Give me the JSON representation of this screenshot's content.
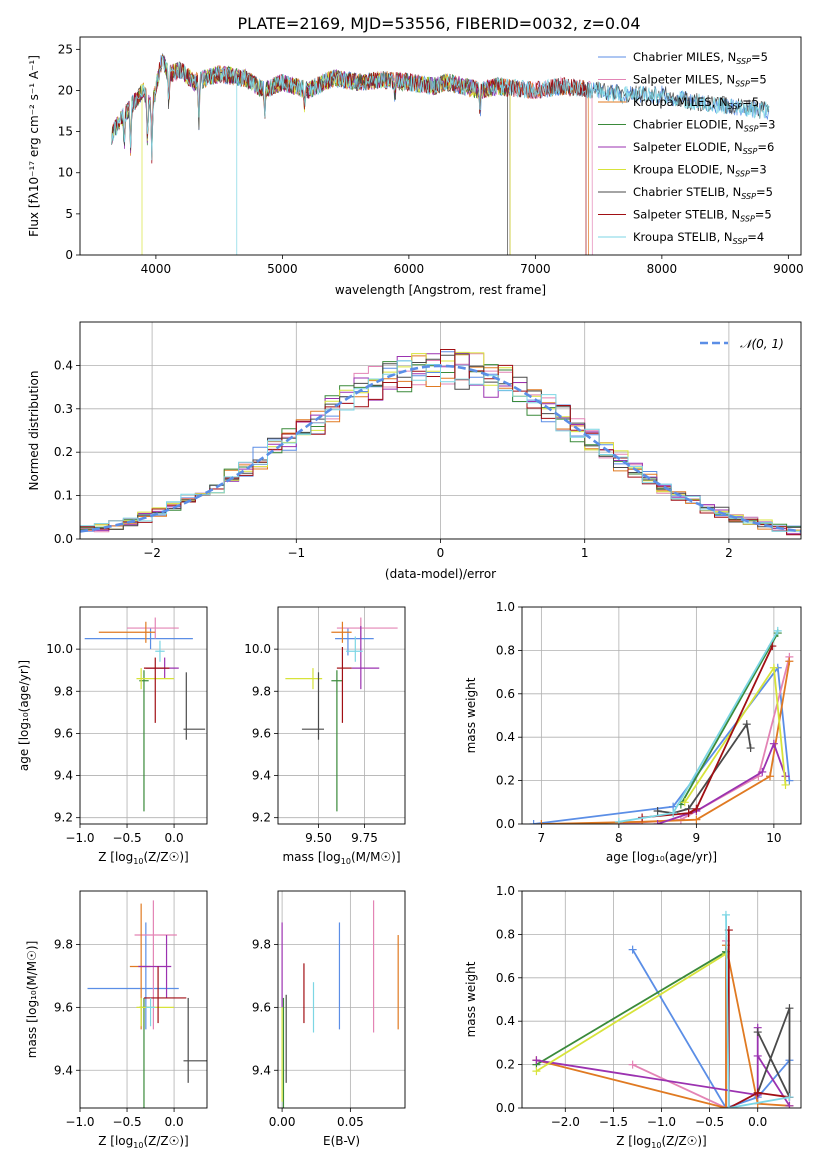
{
  "figure": {
    "title": "PLATE=2169, MJD=53556, FIBERID=0032, z=0.04"
  },
  "colors": [
    "#5b8ee6",
    "#e384b5",
    "#e07a22",
    "#3a8a3a",
    "#9b32b0",
    "#d7e33a",
    "#4a4a4a",
    "#a10f14",
    "#7cd6e4"
  ],
  "chart_data": [
    {
      "id": "spectrum",
      "type": "line",
      "xlabel": "wavelength [Angstrom, rest frame]",
      "ylabel": "Flux [fλ10⁻¹⁷ erg cm⁻² s⁻¹ A⁻¹]",
      "xlim": [
        3400,
        9100
      ],
      "ylim": [
        0,
        26.5
      ],
      "xticks": [
        4000,
        5000,
        6000,
        7000,
        8000,
        9000
      ],
      "yticks": [
        0,
        5,
        10,
        15,
        20,
        25
      ],
      "legend_loc": "upper-right",
      "series": [
        {
          "name": "Chabrier MILES, N_SSP=5",
          "label_main": "Chabrier MILES, N",
          "label_sub": "SSP",
          "label_tail": "=5",
          "x_range": [
            3650,
            8850
          ],
          "gaps": []
        },
        {
          "name": "Salpeter MILES, N_SSP=5",
          "label_main": "Salpeter MILES, N",
          "label_sub": "SSP",
          "label_tail": "=5",
          "x_range": [
            3650,
            7450
          ],
          "gaps": []
        },
        {
          "name": "Kroupa MILES, N_SSP=5",
          "label_main": "Kroupa MILES, N",
          "label_sub": "SSP",
          "label_tail": "=5",
          "x_range": [
            3650,
            7420
          ],
          "gaps": []
        },
        {
          "name": "Chabrier ELODIE, N_SSP=3",
          "label_main": "Chabrier ELODIE, N",
          "label_sub": "SSP",
          "label_tail": "=3",
          "x_range": [
            3650,
            6800
          ],
          "gaps": []
        },
        {
          "name": "Salpeter ELODIE, N_SSP=6",
          "label_main": "Salpeter ELODIE, N",
          "label_sub": "SSP",
          "label_tail": "=6",
          "x_range": [
            3650,
            6800
          ],
          "gaps": []
        },
        {
          "name": "Kroupa ELODIE, N_SSP=3",
          "label_main": "Kroupa ELODIE, N",
          "label_sub": "SSP",
          "label_tail": "=3",
          "x_range": [
            3650,
            6800
          ],
          "gaps": [
            3890
          ]
        },
        {
          "name": "Chabrier STELIB, N_SSP=5",
          "label_main": "Chabrier STELIB, N",
          "label_sub": "SSP",
          "label_tail": "=5",
          "x_range": [
            3650,
            8850
          ],
          "gaps": [
            6780
          ]
        },
        {
          "name": "Salpeter STELIB, N_SSP=5",
          "label_main": "Salpeter STELIB, N",
          "label_sub": "SSP",
          "label_tail": "=5",
          "x_range": [
            3650,
            7400
          ],
          "gaps": []
        },
        {
          "name": "Kroupa STELIB, N_SSP=4",
          "label_main": "Kroupa STELIB, N",
          "label_sub": "SSP",
          "label_tail": "=4",
          "x_range": [
            3650,
            8850
          ],
          "gaps": [
            4640
          ]
        }
      ],
      "profile": {
        "x": [
          3650,
          3700,
          3800,
          3900,
          3970,
          4050,
          4100,
          4200,
          4300,
          4400,
          4500,
          4700,
          4860,
          5000,
          5200,
          5400,
          5600,
          5800,
          6000,
          6200,
          6300,
          6563,
          6700,
          7000,
          7200,
          7500,
          7700,
          8000,
          8300,
          8600,
          8850
        ],
        "y": [
          14.5,
          16,
          18,
          20,
          18,
          24,
          22,
          22.5,
          21,
          21.5,
          22,
          21.5,
          20,
          21,
          20,
          21.5,
          21,
          21.3,
          21,
          20.5,
          21,
          20,
          20.5,
          20,
          20.5,
          20,
          19.5,
          19.5,
          18.5,
          18,
          17.5
        ]
      }
    },
    {
      "id": "residuals",
      "type": "histogram",
      "xlabel": "(data-model)/error",
      "ylabel": "Normed distribution",
      "xlim": [
        -2.5,
        2.5
      ],
      "ylim": [
        0,
        0.5
      ],
      "xticks": [
        -2,
        -1,
        0,
        1,
        2
      ],
      "yticks": [
        0.0,
        0.1,
        0.2,
        0.3,
        0.4
      ],
      "legend_loc": "upper-right",
      "legend_label": "𝒩(0, 1)",
      "bin_width": 0.1
    },
    {
      "id": "age_vs_Z",
      "type": "errorbar",
      "xlabel_main": "Z [log",
      "xlabel_sub": "10",
      "xlabel_tail": "(Z/Z☉)]",
      "ylabel": "age  [log₁₀(age/yr)]",
      "xlim": [
        -1.0,
        0.35
      ],
      "ylim": [
        9.17,
        10.2
      ],
      "xticks": [
        -1.0,
        -0.5,
        0.0
      ],
      "xtick_labels": [
        "−1.0",
        "−0.5",
        "0.0"
      ],
      "yticks": [
        9.2,
        9.4,
        9.6,
        9.8,
        10.0
      ],
      "points": [
        {
          "x": -0.25,
          "y": 10.05,
          "xerr": [
            0.7,
            0.45
          ],
          "yerr": [
            0.05,
            0.05
          ],
          "c": 0
        },
        {
          "x": -0.2,
          "y": 10.1,
          "xerr": [
            0.3,
            0.25
          ],
          "yerr": [
            0.05,
            0.05
          ],
          "c": 1
        },
        {
          "x": -0.3,
          "y": 10.08,
          "xerr": [
            0.5,
            0.1
          ],
          "yerr": [
            0.05,
            0.05
          ],
          "c": 2
        },
        {
          "x": -0.32,
          "y": 9.85,
          "xerr": [
            0.05,
            0.05
          ],
          "yerr": [
            0.62,
            0.05
          ],
          "c": 3
        },
        {
          "x": -0.1,
          "y": 9.91,
          "xerr": [
            0.2,
            0.15
          ],
          "yerr": [
            0.05,
            0.05
          ],
          "c": 4
        },
        {
          "x": -0.35,
          "y": 9.86,
          "xerr": [
            0.05,
            0.35
          ],
          "yerr": [
            0.05,
            0.05
          ],
          "c": 5
        },
        {
          "x": 0.13,
          "y": 9.62,
          "xerr": [
            0.03,
            0.2
          ],
          "yerr": [
            0.05,
            0.27
          ],
          "c": 6
        },
        {
          "x": -0.2,
          "y": 9.91,
          "xerr": [
            0.12,
            0.15
          ],
          "yerr": [
            0.26,
            0.05
          ],
          "c": 7
        },
        {
          "x": -0.15,
          "y": 9.99,
          "xerr": [
            0.05,
            0.05
          ],
          "yerr": [
            0.05,
            0.05
          ],
          "c": 8
        }
      ]
    },
    {
      "id": "age_vs_mass",
      "type": "errorbar",
      "xlabel_main": "mass [log",
      "xlabel_sub": "10",
      "xlabel_tail": "(M/M☉)]",
      "xlim": [
        9.28,
        9.97
      ],
      "ylim": [
        9.17,
        10.2
      ],
      "xticks": [
        9.5,
        9.75
      ],
      "xtick_labels": [
        "9.50",
        "9.75"
      ],
      "yticks": [
        9.2,
        9.4,
        9.6,
        9.8,
        10.0
      ],
      "points": [
        {
          "x": 9.66,
          "y": 10.05,
          "xerr": [
            0.07,
            0.14
          ],
          "yerr": [
            0.08,
            0.05
          ],
          "c": 0
        },
        {
          "x": 9.73,
          "y": 10.1,
          "xerr": [
            0.13,
            0.2
          ],
          "yerr": [
            0.05,
            0.05
          ],
          "c": 1
        },
        {
          "x": 9.63,
          "y": 10.08,
          "xerr": [
            0.06,
            0.05
          ],
          "yerr": [
            0.05,
            0.05
          ],
          "c": 2
        },
        {
          "x": 9.6,
          "y": 9.85,
          "xerr": [
            0.03,
            0.03
          ],
          "yerr": [
            0.62,
            0.05
          ],
          "c": 3
        },
        {
          "x": 9.73,
          "y": 9.91,
          "xerr": [
            0.05,
            0.1
          ],
          "yerr": [
            0.1,
            0.2
          ],
          "c": 4
        },
        {
          "x": 9.47,
          "y": 9.86,
          "xerr": [
            0.15,
            0.05
          ],
          "yerr": [
            0.05,
            0.05
          ],
          "c": 5
        },
        {
          "x": 9.5,
          "y": 9.62,
          "xerr": [
            0.09,
            0.03
          ],
          "yerr": [
            0.05,
            0.27
          ],
          "c": 6
        },
        {
          "x": 9.63,
          "y": 9.91,
          "xerr": [
            0.03,
            0.05
          ],
          "yerr": [
            0.26,
            0.1
          ],
          "c": 7
        },
        {
          "x": 9.7,
          "y": 9.99,
          "xerr": [
            0.05,
            0.04
          ],
          "yerr": [
            0.05,
            0.07
          ],
          "c": 8
        }
      ]
    },
    {
      "id": "weight_vs_age",
      "type": "line",
      "xlabel": "age  [log₁₀(age/yr)]",
      "ylabel": "mass weight",
      "xlim": [
        6.75,
        10.35
      ],
      "ylim": [
        0,
        1.0
      ],
      "xticks": [
        7,
        8,
        9,
        10
      ],
      "yticks": [
        0.0,
        0.2,
        0.4,
        0.6,
        0.8,
        1.0
      ],
      "series": [
        {
          "c": 0,
          "x": [
            6.9,
            8.7,
            10.05,
            10.2
          ],
          "y": [
            0.0,
            0.08,
            0.72,
            0.2
          ]
        },
        {
          "c": 1,
          "x": [
            8.0,
            8.8,
            9.8,
            10.2
          ],
          "y": [
            0.0,
            0.02,
            0.22,
            0.77
          ]
        },
        {
          "c": 2,
          "x": [
            7.0,
            8.3,
            9.0,
            9.95,
            10.2
          ],
          "y": [
            0.0,
            0.01,
            0.02,
            0.22,
            0.75
          ]
        },
        {
          "c": 3,
          "x": [
            8.8,
            10.05
          ],
          "y": [
            0.09,
            0.88
          ]
        },
        {
          "c": 4,
          "x": [
            8.5,
            9.0,
            9.85,
            10.0,
            10.15
          ],
          "y": [
            0.0,
            0.06,
            0.24,
            0.37,
            0.22
          ]
        },
        {
          "c": 5,
          "x": [
            8.85,
            10.0,
            10.15
          ],
          "y": [
            0.1,
            0.72,
            0.18
          ]
        },
        {
          "c": 6,
          "x": [
            8.5,
            8.7,
            8.9,
            9.65,
            9.7
          ],
          "y": [
            0.06,
            0.05,
            0.07,
            0.46,
            0.35
          ]
        },
        {
          "c": 7,
          "x": [
            8.3,
            8.9,
            9.0,
            9.98
          ],
          "y": [
            0.03,
            0.05,
            0.07,
            0.82
          ]
        },
        {
          "c": 8,
          "x": [
            8.0,
            8.7,
            10.05
          ],
          "y": [
            0.01,
            0.05,
            0.89
          ]
        }
      ]
    },
    {
      "id": "mass_vs_Z",
      "type": "errorbar",
      "xlabel_main": "Z [log",
      "xlabel_sub": "10",
      "xlabel_tail": "(Z/Z☉)]",
      "ylabel": "mass [log₁₀(M/M☉)]",
      "xlim": [
        -1.0,
        0.35
      ],
      "ylim": [
        9.28,
        9.97
      ],
      "xticks": [
        -1.0,
        -0.5,
        0.0
      ],
      "xtick_labels": [
        "−1.0",
        "−0.5",
        "0.0"
      ],
      "yticks": [
        9.4,
        9.6,
        9.8
      ],
      "points": [
        {
          "x": -0.3,
          "y": 9.66,
          "xerr": [
            0.62,
            0.35
          ],
          "yerr": [
            0.13,
            0.21
          ],
          "c": 0
        },
        {
          "x": -0.22,
          "y": 9.83,
          "xerr": [
            0.2,
            0.25
          ],
          "yerr": [
            0.3,
            0.11
          ],
          "c": 1
        },
        {
          "x": -0.35,
          "y": 9.73,
          "xerr": [
            0.12,
            0.1
          ],
          "yerr": [
            0.2,
            0.2
          ],
          "c": 2
        },
        {
          "x": -0.32,
          "y": 9.6,
          "xerr": [
            0.05,
            0.05
          ],
          "yerr": [
            0.32,
            0.03
          ],
          "c": 3
        },
        {
          "x": -0.08,
          "y": 9.73,
          "xerr": [
            0.3,
            0.05
          ],
          "yerr": [
            0.1,
            0.1
          ],
          "c": 4
        },
        {
          "x": -0.35,
          "y": 9.6,
          "xerr": [
            0.05,
            0.35
          ],
          "yerr": [
            0.06,
            0.03
          ],
          "c": 5
        },
        {
          "x": 0.15,
          "y": 9.43,
          "xerr": [
            0.05,
            0.2
          ],
          "yerr": [
            0.07,
            0.2
          ],
          "c": 6
        },
        {
          "x": -0.17,
          "y": 9.63,
          "xerr": [
            0.15,
            0.3
          ],
          "yerr": [
            0.08,
            0.1
          ],
          "c": 7
        },
        {
          "x": -0.25,
          "y": 9.6,
          "xerr": [
            0.05,
            0.05
          ],
          "yerr": [
            0.06,
            0.03
          ],
          "c": 8
        }
      ]
    },
    {
      "id": "mass_vs_EBV",
      "type": "errorbar",
      "xlabel": "E(B-V)",
      "xlim": [
        -0.003,
        0.09
      ],
      "ylim": [
        9.28,
        9.97
      ],
      "xticks": [
        0.0,
        0.05
      ],
      "xtick_labels": [
        "0.00",
        "0.05"
      ],
      "yticks": [
        9.4,
        9.6,
        9.8
      ],
      "points": [
        {
          "x": 0.042,
          "y": 9.66,
          "xerr": [
            0,
            0
          ],
          "yerr": [
            0.13,
            0.21
          ],
          "c": 0
        },
        {
          "x": 0.067,
          "y": 9.73,
          "xerr": [
            0,
            0
          ],
          "yerr": [
            0.21,
            0.21
          ],
          "c": 1
        },
        {
          "x": 0.085,
          "y": 9.68,
          "xerr": [
            0,
            0
          ],
          "yerr": [
            0.15,
            0.15
          ],
          "c": 2
        },
        {
          "x": 0.001,
          "y": 9.6,
          "xerr": [
            0,
            0
          ],
          "yerr": [
            0.32,
            0.03
          ],
          "c": 3
        },
        {
          "x": 0.0,
          "y": 9.75,
          "xerr": [
            0,
            0
          ],
          "yerr": [
            0.15,
            0.12
          ],
          "c": 4
        },
        {
          "x": 0.0,
          "y": 9.45,
          "xerr": [
            0,
            0
          ],
          "yerr": [
            0.15,
            0.15
          ],
          "c": 5
        },
        {
          "x": 0.003,
          "y": 9.5,
          "xerr": [
            0,
            0
          ],
          "yerr": [
            0.14,
            0.14
          ],
          "c": 6
        },
        {
          "x": 0.016,
          "y": 9.65,
          "xerr": [
            0,
            0
          ],
          "yerr": [
            0.1,
            0.09
          ],
          "c": 7
        },
        {
          "x": 0.023,
          "y": 9.6,
          "xerr": [
            0,
            0
          ],
          "yerr": [
            0.08,
            0.08
          ],
          "c": 8
        }
      ]
    },
    {
      "id": "weight_vs_Z",
      "type": "line",
      "xlabel_main": "Z [log",
      "xlabel_sub": "10",
      "xlabel_tail": "(Z/Z☉)]",
      "ylabel": "mass weight",
      "xlim": [
        -2.45,
        0.45
      ],
      "ylim": [
        0,
        1.0
      ],
      "xticks": [
        -2.0,
        -1.5,
        -1.0,
        -0.5,
        0.0
      ],
      "xtick_labels": [
        "−2.0",
        "−1.5",
        "−1.0",
        "−0.5",
        "0.0"
      ],
      "yticks": [
        0.0,
        0.2,
        0.4,
        0.6,
        0.8,
        1.0
      ],
      "series": [
        {
          "c": 0,
          "x": [
            -1.3,
            -0.33,
            0.0,
            0.33
          ],
          "y": [
            0.73,
            0.0,
            0.05,
            0.22
          ]
        },
        {
          "c": 1,
          "x": [
            -1.3,
            -0.33,
            -0.33
          ],
          "y": [
            0.2,
            0.0,
            0.77
          ]
        },
        {
          "c": 2,
          "x": [
            -2.3,
            -0.33,
            -0.33,
            0.0,
            0.33
          ],
          "y": [
            0.22,
            0.0,
            0.75,
            0.02,
            0.01
          ]
        },
        {
          "c": 3,
          "x": [
            -2.3,
            -0.33
          ],
          "y": [
            0.2,
            0.72
          ]
        },
        {
          "c": 4,
          "x": [
            -2.3,
            0.0,
            0.0,
            0.0,
            0.33
          ],
          "y": [
            0.22,
            0.06,
            0.37,
            0.24,
            0.01
          ]
        },
        {
          "c": 5,
          "x": [
            -2.3,
            -0.33
          ],
          "y": [
            0.17,
            0.71
          ]
        },
        {
          "c": 6,
          "x": [
            0.0,
            0.33,
            0.33,
            0.0
          ],
          "y": [
            0.35,
            0.05,
            0.46,
            0.07
          ]
        },
        {
          "c": 7,
          "x": [
            -0.3,
            -0.3,
            0.0,
            0.33
          ],
          "y": [
            0.82,
            0.0,
            0.07,
            0.05
          ]
        },
        {
          "c": 8,
          "x": [
            -0.33,
            -0.3,
            0.33
          ],
          "y": [
            0.89,
            0.0,
            0.05
          ]
        }
      ]
    }
  ]
}
